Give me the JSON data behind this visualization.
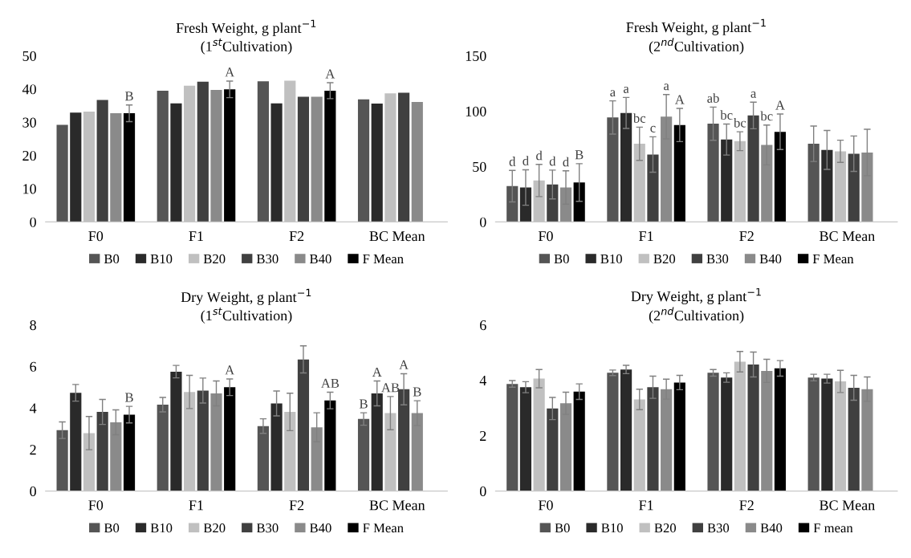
{
  "chart_data": [
    {
      "type": "bar",
      "title": "Fresh Weight, g plant$^{−1}$",
      "subtitle": "(1$^{st}$Cultivation)",
      "categories": [
        "F0",
        "F1",
        "F2",
        "BC Mean"
      ],
      "ylim": [
        0,
        50
      ],
      "yticks": [
        0,
        10,
        20,
        30,
        40,
        50
      ],
      "legend": "bottom",
      "series": [
        {
          "name": "B0",
          "color": "#555555",
          "values": [
            29.2,
            39.5,
            42.3,
            36.9
          ]
        },
        {
          "name": "B10",
          "color": "#2a2a2a",
          "values": [
            32.9,
            35.7,
            35.7,
            35.6
          ]
        },
        {
          "name": "B20",
          "color": "#c0c0c0",
          "values": [
            33.2,
            41.0,
            42.5,
            38.7
          ]
        },
        {
          "name": "B30",
          "color": "#404040",
          "values": [
            36.7,
            42.2,
            37.7,
            38.9
          ]
        },
        {
          "name": "B40",
          "color": "#8a8a8a",
          "values": [
            32.7,
            39.7,
            37.7,
            36.1
          ]
        },
        {
          "name": "F Mean",
          "color": "#000000",
          "values": [
            32.7,
            39.9,
            39.5,
            null
          ],
          "errors": [
            2.5,
            2.5,
            2.4,
            null
          ],
          "value_labels": [
            "B",
            "A",
            "A",
            null
          ]
        }
      ]
    },
    {
      "type": "bar",
      "title": "Fresh Weight, g plant$^{−1}$",
      "subtitle": "(2$^{nd}$Cultivation)",
      "categories": [
        "F0",
        "F1",
        "F2",
        "BC Mean"
      ],
      "ylim": [
        0,
        150
      ],
      "yticks": [
        0,
        50,
        100,
        150
      ],
      "legend": "bottom",
      "series": [
        {
          "name": "B0",
          "color": "#555555",
          "values": [
            32.3,
            94.3,
            88.7,
            70.6
          ],
          "errors": [
            14.2,
            15,
            15,
            16
          ],
          "value_labels": [
            "d",
            "a",
            "ab",
            null
          ]
        },
        {
          "name": "B10",
          "color": "#2a2a2a",
          "values": [
            31.1,
            98.4,
            74.4,
            65
          ],
          "errors": [
            16,
            14,
            14,
            17.6
          ],
          "value_labels": [
            "d",
            "a",
            "bc",
            null
          ]
        },
        {
          "name": "B20",
          "color": "#c0c0c0",
          "values": [
            37.4,
            70.6,
            72.9,
            63.8
          ],
          "errors": [
            14.5,
            15,
            8.5,
            10
          ],
          "value_labels": [
            "d",
            "bc",
            "bc",
            null
          ]
        },
        {
          "name": "B30",
          "color": "#404040",
          "values": [
            33.8,
            60.9,
            96.1,
            61.6
          ],
          "errors": [
            13,
            16,
            12,
            16
          ],
          "value_labels": [
            "d",
            "c",
            "a",
            null
          ]
        },
        {
          "name": "B40",
          "color": "#8a8a8a",
          "values": [
            31.1,
            95,
            69.5,
            62.7
          ],
          "errors": [
            15,
            20,
            18,
            21
          ],
          "value_labels": [
            "d",
            "a",
            "bc",
            null
          ]
        },
        {
          "name": "F Mean",
          "color": "#000000",
          "values": [
            35.6,
            87.5,
            81.4,
            null
          ],
          "errors": [
            17,
            15,
            16,
            null
          ],
          "value_labels": [
            "B",
            "A",
            "A",
            null
          ]
        }
      ]
    },
    {
      "type": "bar",
      "title": "Dry Weight, g plant$^{−1}$",
      "subtitle": "(1$^{st}$Cultivation)",
      "categories": [
        "F0",
        "F1",
        "F2",
        "BC Mean"
      ],
      "ylim": [
        0,
        8
      ],
      "yticks": [
        0,
        2,
        4,
        6,
        8
      ],
      "legend": "bottom",
      "series": [
        {
          "name": "B0",
          "color": "#555555",
          "values": [
            2.93,
            4.16,
            3.13,
            3.47
          ],
          "errors": [
            0.4,
            0.35,
            0.35,
            0.3
          ],
          "value_labels": [
            null,
            null,
            null,
            "B"
          ]
        },
        {
          "name": "B10",
          "color": "#2a2a2a",
          "values": [
            4.73,
            5.75,
            4.22,
            4.7
          ],
          "errors": [
            0.4,
            0.3,
            0.6,
            0.6
          ],
          "value_labels": [
            null,
            null,
            null,
            "A"
          ]
        },
        {
          "name": "B20",
          "color": "#c0c0c0",
          "values": [
            2.79,
            4.77,
            3.81,
            3.75
          ],
          "errors": [
            0.8,
            0.8,
            0.9,
            0.8
          ],
          "value_labels": [
            null,
            null,
            null,
            "AB"
          ]
        },
        {
          "name": "B30",
          "color": "#404040",
          "values": [
            3.81,
            4.84,
            6.34,
            4.9
          ],
          "errors": [
            0.6,
            0.6,
            0.65,
            0.75
          ],
          "value_labels": [
            null,
            null,
            null,
            "A"
          ]
        },
        {
          "name": "B40",
          "color": "#8a8a8a",
          "values": [
            3.31,
            4.7,
            3.07,
            3.75
          ],
          "errors": [
            0.6,
            0.6,
            0.7,
            0.6
          ],
          "value_labels": [
            null,
            null,
            null,
            "B"
          ]
        },
        {
          "name": "F Mean",
          "color": "#000000",
          "values": [
            3.68,
            5.0,
            4.36,
            null
          ],
          "errors": [
            0.4,
            0.4,
            0.4,
            null
          ],
          "value_labels": [
            "B",
            "A",
            "AB",
            null
          ]
        }
      ]
    },
    {
      "type": "bar",
      "title": "Dry Weight, g plant$^{−1}$",
      "subtitle": "(2$^{nd}$Cultivation)",
      "categories": [
        "F0",
        "F1",
        "F2",
        "BC Mean"
      ],
      "ylim": [
        0,
        6
      ],
      "yticks": [
        0,
        2,
        4,
        6
      ],
      "legend": "bottom",
      "series": [
        {
          "name": "B0",
          "color": "#555555",
          "values": [
            3.87,
            4.27,
            4.27,
            4.1
          ],
          "errors": [
            0.12,
            0.1,
            0.12,
            0.12
          ]
        },
        {
          "name": "B10",
          "color": "#2a2a2a",
          "values": [
            3.75,
            4.39,
            4.1,
            4.06
          ],
          "errors": [
            0.2,
            0.15,
            0.17,
            0.16
          ]
        },
        {
          "name": "B20",
          "color": "#c0c0c0",
          "values": [
            4.06,
            3.31,
            4.67,
            3.96
          ],
          "errors": [
            0.33,
            0.37,
            0.37,
            0.4
          ]
        },
        {
          "name": "B30",
          "color": "#404040",
          "values": [
            2.98,
            3.75,
            4.57,
            3.73
          ],
          "errors": [
            0.4,
            0.4,
            0.45,
            0.45
          ]
        },
        {
          "name": "B40",
          "color": "#8a8a8a",
          "values": [
            3.17,
            3.68,
            4.34,
            3.68
          ],
          "errors": [
            0.4,
            0.36,
            0.42,
            0.44
          ]
        },
        {
          "name": "F mean",
          "color": "#000000",
          "values": [
            3.59,
            3.92,
            4.43,
            null
          ],
          "errors": [
            0.28,
            0.26,
            0.28,
            null
          ]
        }
      ]
    }
  ]
}
